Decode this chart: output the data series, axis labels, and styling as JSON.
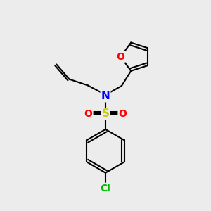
{
  "bg_color": "#ececec",
  "atom_colors": {
    "C": "#000000",
    "N": "#0000ff",
    "O": "#ff0000",
    "S": "#cccc00",
    "Cl": "#00bb00"
  },
  "bond_color": "#000000",
  "bond_width": 1.5,
  "figsize": [
    3.0,
    3.0
  ],
  "dpi": 100,
  "xlim": [
    0,
    10
  ],
  "ylim": [
    0,
    10
  ]
}
